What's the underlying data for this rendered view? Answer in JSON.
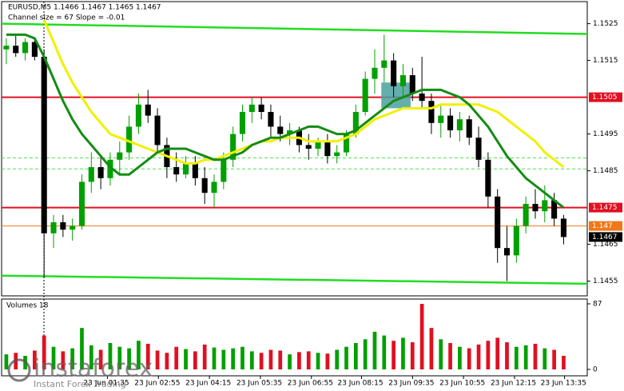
{
  "chart_data": {
    "type": "candlestick",
    "title": "EURUSD,M5  1.1466 1.1467 1.1465 1.1467",
    "subtitle": "Channel size = 67 Slope = -0.01",
    "xlim": [
      0,
      62
    ],
    "xticks": [
      {
        "value": 11.2,
        "label": "23 Jun 01:35"
      },
      {
        "value": 16.6,
        "label": "23 Jun 02:55"
      },
      {
        "value": 22,
        "label": "23 Jun 04:15"
      },
      {
        "value": 27.4,
        "label": "23 Jun 05:35"
      },
      {
        "value": 32.8,
        "label": "23 Jun 06:55"
      },
      {
        "value": 38.1,
        "label": "23 Jun 08:15"
      },
      {
        "value": 43.5,
        "label": "23 Jun 09:35"
      },
      {
        "value": 48.9,
        "label": "23 Jun 10:55"
      },
      {
        "value": 54.3,
        "label": "23 Jun 12:15"
      },
      {
        "value": 59.6,
        "label": "23 Jun 13:35"
      }
    ],
    "ylim": [
      1.1451,
      1.1531
    ],
    "yticks": [
      1.1525,
      1.1515,
      1.1495,
      1.1485,
      1.1465,
      1.1455
    ],
    "open": [
      1.1518,
      1.1519,
      1.1517,
      1.152,
      1.1516,
      1.1468,
      1.1471,
      1.1469,
      1.147,
      1.1482,
      1.1486,
      1.1483,
      1.1488,
      1.149,
      1.1497,
      1.1503,
      1.15,
      1.1492,
      1.1486,
      1.1484,
      1.1487,
      1.1483,
      1.1479,
      1.1482,
      1.1488,
      1.1495,
      1.1501,
      1.1503,
      1.1501,
      1.1497,
      1.1495,
      1.1496,
      1.1492,
      1.1491,
      1.1493,
      1.1489,
      1.149,
      1.1495,
      1.1501,
      1.151,
      1.1513,
      1.1515,
      1.1508,
      1.1511,
      1.1506,
      1.1504,
      1.1498,
      1.15,
      1.1496,
      1.1499,
      1.1494,
      1.1488,
      1.1478,
      1.1464,
      1.1462,
      1.147,
      1.1476,
      1.1474,
      1.1477,
      1.1472
    ],
    "high": [
      1.1521,
      1.1522,
      1.1521,
      1.1521,
      1.1518,
      1.1473,
      1.1473,
      1.1472,
      1.1484,
      1.149,
      1.1489,
      1.149,
      1.1493,
      1.15,
      1.1506,
      1.1507,
      1.1502,
      1.1494,
      1.149,
      1.1489,
      1.1489,
      1.1486,
      1.1484,
      1.149,
      1.1497,
      1.1503,
      1.1505,
      1.1505,
      1.1503,
      1.15,
      1.1498,
      1.1497,
      1.1495,
      1.1494,
      1.1495,
      1.1492,
      1.1496,
      1.1503,
      1.1512,
      1.1518,
      1.1522,
      1.1517,
      1.1514,
      1.1513,
      1.1516,
      1.1506,
      1.1503,
      1.1502,
      1.1501,
      1.15,
      1.1497,
      1.149,
      1.148,
      1.147,
      1.1472,
      1.1478,
      1.148,
      1.1481,
      1.1479,
      1.1473
    ],
    "low": [
      1.1514,
      1.1516,
      1.1515,
      1.1515,
      1.1456,
      1.1464,
      1.1467,
      1.1466,
      1.1469,
      1.1479,
      1.148,
      1.1481,
      1.1484,
      1.1488,
      1.1495,
      1.1498,
      1.149,
      1.1483,
      1.1482,
      1.1483,
      1.1481,
      1.1476,
      1.1475,
      1.148,
      1.1486,
      1.1493,
      1.1498,
      1.1499,
      1.1494,
      1.1493,
      1.1492,
      1.149,
      1.1488,
      1.1489,
      1.1487,
      1.1487,
      1.1489,
      1.1494,
      1.15,
      1.1506,
      1.1509,
      1.1505,
      1.1505,
      1.1504,
      1.1502,
      1.1495,
      1.1494,
      1.1494,
      1.1493,
      1.1492,
      1.1486,
      1.1475,
      1.146,
      1.1455,
      1.146,
      1.1468,
      1.1472,
      1.1471,
      1.147,
      1.1465
    ],
    "close": [
      1.1519,
      1.1517,
      1.152,
      1.1516,
      1.1468,
      1.1471,
      1.1469,
      1.147,
      1.1482,
      1.1486,
      1.1483,
      1.1488,
      1.149,
      1.1497,
      1.1503,
      1.15,
      1.1492,
      1.1486,
      1.1484,
      1.1487,
      1.1483,
      1.1479,
      1.1482,
      1.1488,
      1.1495,
      1.1501,
      1.1503,
      1.1501,
      1.1497,
      1.1495,
      1.1496,
      1.1492,
      1.1491,
      1.1493,
      1.1489,
      1.149,
      1.1495,
      1.1501,
      1.151,
      1.1513,
      1.1515,
      1.1508,
      1.1511,
      1.1506,
      1.1504,
      1.1498,
      1.15,
      1.1496,
      1.1499,
      1.1494,
      1.1488,
      1.1478,
      1.1464,
      1.1462,
      1.147,
      1.1476,
      1.1474,
      1.1477,
      1.1472,
      1.1467
    ],
    "bull_color": "#00a000",
    "bear_color": "#000000",
    "series": [
      {
        "color": "#f0f000",
        "values": [
          null,
          null,
          null,
          null,
          1.1526,
          1.152,
          1.1514,
          1.1509,
          1.1505,
          1.1501,
          1.1498,
          1.1495,
          1.1494,
          1.1493,
          1.1492,
          1.1491,
          1.149,
          1.1489,
          1.1488,
          1.1487,
          1.1487,
          1.1488,
          1.1488,
          1.1489,
          1.149,
          1.1491,
          1.1492,
          1.1493,
          1.1493,
          1.1494,
          1.1494,
          1.1494,
          1.1493,
          1.1493,
          1.1493,
          1.1493,
          1.1494,
          1.1495,
          1.1497,
          1.1499,
          1.15,
          1.1501,
          1.1502,
          1.1502,
          1.1502,
          1.1502,
          1.1503,
          1.1503,
          1.1503,
          1.1503,
          1.1503,
          1.1502,
          1.1501,
          1.1499,
          1.1497,
          1.1495,
          1.1493,
          1.149,
          1.1488,
          1.1486
        ]
      },
      {
        "color": "#148c14",
        "values": [
          1.1522,
          1.1522,
          1.1522,
          1.1521,
          1.1516,
          1.151,
          1.1504,
          1.1499,
          1.1495,
          1.1492,
          1.1489,
          1.1486,
          1.1484,
          1.1484,
          1.1486,
          1.1488,
          1.149,
          1.1491,
          1.1491,
          1.1491,
          1.149,
          1.1489,
          1.1488,
          1.1488,
          1.1489,
          1.149,
          1.1492,
          1.1493,
          1.1494,
          1.1494,
          1.1495,
          1.1496,
          1.1497,
          1.1497,
          1.1496,
          1.1495,
          1.1495,
          1.1496,
          1.1498,
          1.15,
          1.1502,
          1.1504,
          1.1505,
          1.1506,
          1.1507,
          1.1507,
          1.1507,
          1.1506,
          1.1505,
          1.1503,
          1.15,
          1.1497,
          1.1493,
          1.1489,
          1.1486,
          1.1483,
          1.1481,
          1.1479,
          1.1477,
          1.1475
        ]
      }
    ],
    "channel": [
      {
        "color": "#22dd22",
        "values": [
          1.1525,
          1.15222
        ]
      },
      {
        "color": "#22dd22",
        "values": [
          1.14565,
          1.14543
        ]
      },
      {
        "color": "#55dd55",
        "dashed": true,
        "values": [
          1.14885,
          1.14885
        ]
      },
      {
        "color": "#55dd55",
        "dashed": true,
        "values": [
          1.14855,
          1.14855
        ]
      }
    ],
    "price_levels": [
      {
        "value": 1.1505,
        "color": "#e01020"
      },
      {
        "value": 1.1475,
        "color": "#e01020"
      },
      {
        "value": 1.147,
        "color": "#f07818"
      }
    ],
    "current_price": 1.1467,
    "zone": {
      "x": [
        40.2,
        43.3
      ],
      "y": [
        1.1502,
        1.1509
      ],
      "color": "#4aa0a0"
    },
    "volumes": {
      "title": "Volumes 18",
      "ylim": [
        0,
        87
      ],
      "yticks": [
        0,
        87
      ],
      "values": [
        20,
        22,
        18,
        25,
        45,
        30,
        24,
        28,
        55,
        32,
        26,
        35,
        30,
        28,
        38,
        34,
        25,
        22,
        30,
        27,
        24,
        33,
        29,
        26,
        28,
        30,
        24,
        22,
        26,
        25,
        20,
        23,
        24,
        22,
        21,
        26,
        30,
        35,
        40,
        50,
        45,
        38,
        42,
        36,
        87,
        55,
        40,
        35,
        30,
        28,
        33,
        38,
        42,
        36,
        30,
        32,
        34,
        28,
        26,
        18
      ]
    },
    "watermark": {
      "brand": "instaforex",
      "tagline": "Instant Forex Trading"
    }
  }
}
